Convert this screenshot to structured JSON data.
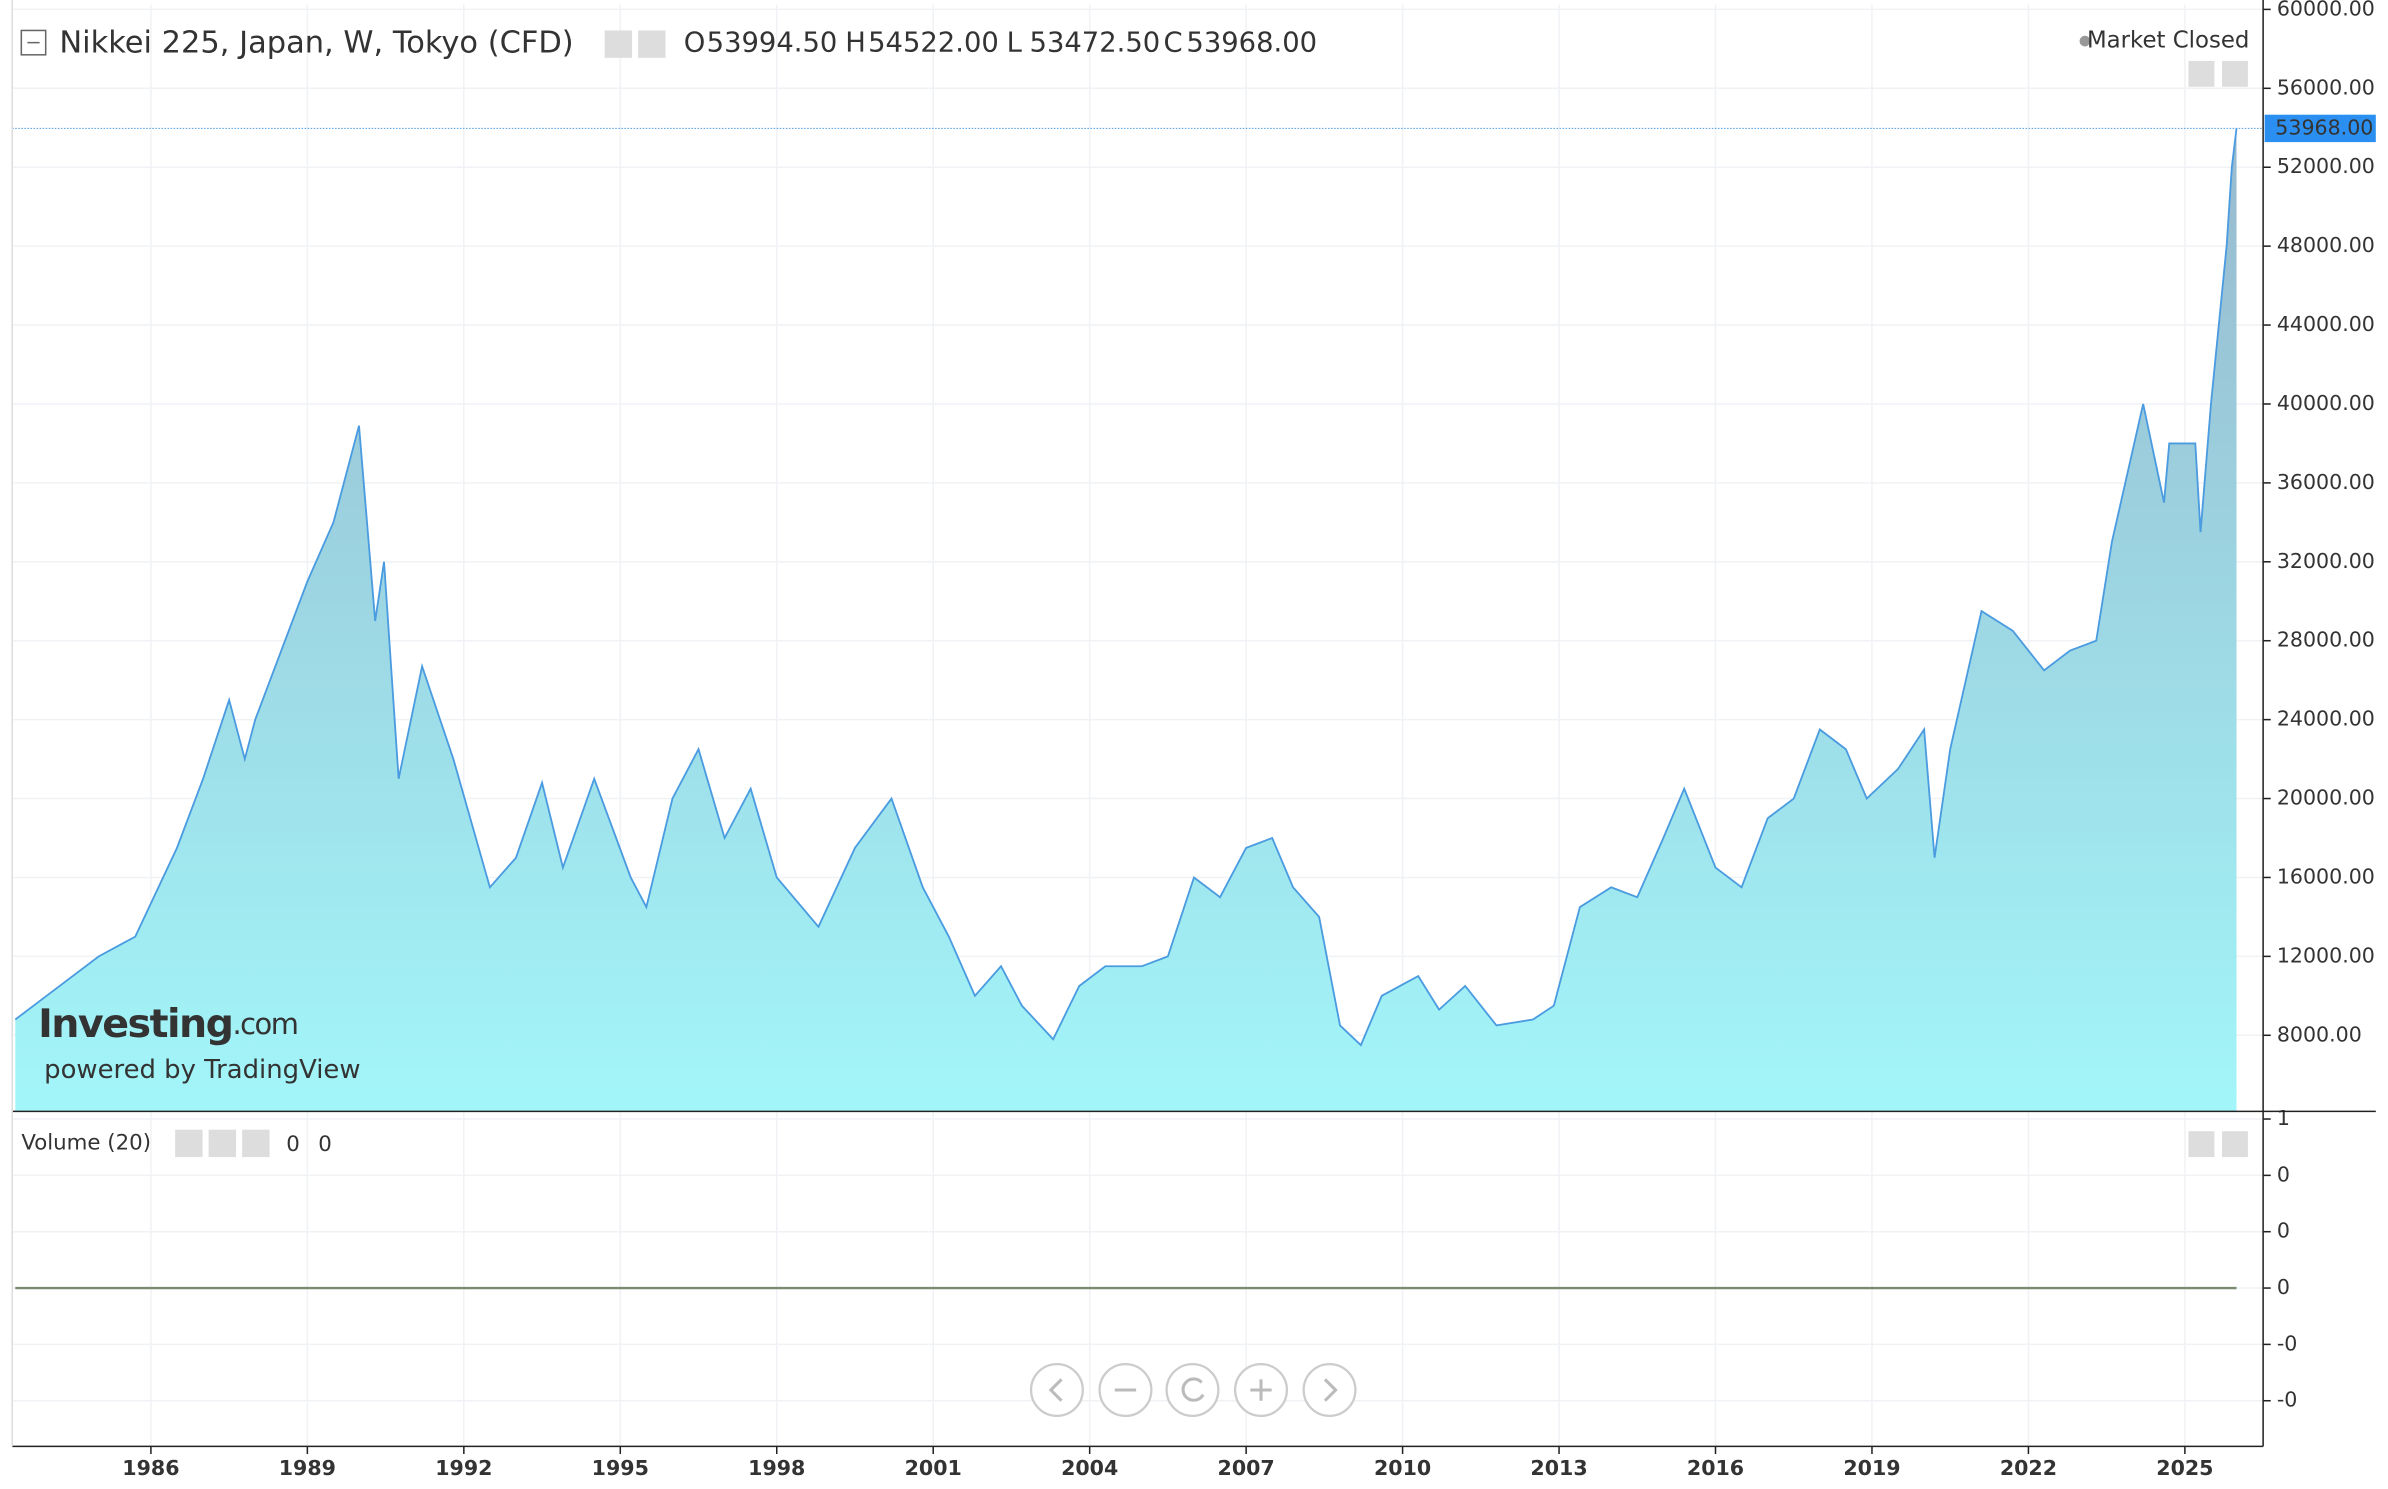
{
  "chart_data": [
    {
      "type": "area",
      "title": "Nikkei 225, Japan, W, Tokyo (CFD)",
      "ohlc": {
        "labels": [
          "O",
          "H",
          "L",
          "C"
        ],
        "values": [
          53994.5,
          54522,
          53472.5,
          53968
        ],
        "value_labels": [
          "53994.50",
          "54522.00",
          "53472.50",
          "53968.00"
        ]
      },
      "status": "Market Closed",
      "brand": [
        "Investing",
        ".com"
      ],
      "powered_by": "powered by TradingView",
      "last_value": 53968,
      "last_value_label": "53968.00",
      "color": "#4a9be0",
      "fill_top": "#98b9ce",
      "fill_bottom": "#a2f6f9",
      "grid": true,
      "x": [
        1983.4,
        1984.0,
        1985.0,
        1985.7,
        1986.5,
        1987.0,
        1987.5,
        1987.8,
        1988.0,
        1988.5,
        1989.0,
        1989.5,
        1989.99,
        1990.3,
        1990.47,
        1990.75,
        1991.2,
        1991.8,
        1992.5,
        1993.0,
        1993.5,
        1993.9,
        1994.5,
        1995.2,
        1995.5,
        1996.0,
        1996.5,
        1997.0,
        1997.5,
        1998.0,
        1998.8,
        1999.5,
        2000.2,
        2000.8,
        2001.3,
        2001.8,
        2002.3,
        2002.7,
        2003.3,
        2003.8,
        2004.3,
        2005.0,
        2005.5,
        2006.0,
        2006.5,
        2007.0,
        2007.5,
        2007.9,
        2008.4,
        2008.8,
        2009.2,
        2009.6,
        2010.3,
        2010.7,
        2011.2,
        2011.8,
        2012.5,
        2012.9,
        2013.4,
        2014.0,
        2014.5,
        2015.0,
        2015.4,
        2016.0,
        2016.5,
        2017.0,
        2017.5,
        2018.0,
        2018.5,
        2018.9,
        2019.5,
        2020.0,
        2020.2,
        2020.5,
        2021.1,
        2021.7,
        2022.3,
        2022.8,
        2023.3,
        2023.6,
        2024.2,
        2024.6,
        2024.7,
        2025.2,
        2025.3,
        2025.5,
        2025.8,
        2025.9,
        2025.99
      ],
      "values": [
        8800,
        10000,
        12000,
        13000,
        17500,
        21000,
        25000,
        22000,
        24000,
        27500,
        31000,
        34000,
        38900,
        29000,
        32000,
        21000,
        26700,
        22000,
        15500,
        17000,
        20800,
        16500,
        21000,
        16000,
        14500,
        20000,
        22500,
        18000,
        20500,
        16000,
        13500,
        17500,
        20000,
        15500,
        13000,
        10000,
        11500,
        9500,
        7800,
        10500,
        11500,
        11500,
        12000,
        16000,
        15000,
        17500,
        18000,
        15500,
        14000,
        8500,
        7500,
        10000,
        11000,
        9300,
        10500,
        8500,
        8800,
        9500,
        14500,
        15500,
        15000,
        18000,
        20500,
        16500,
        15500,
        19000,
        20000,
        23500,
        22500,
        20000,
        21500,
        23500,
        17000,
        22500,
        29500,
        28500,
        26500,
        27500,
        28000,
        33000,
        40000,
        35000,
        38000,
        38000,
        33500,
        40000,
        48000,
        52000,
        53968
      ],
      "xlim": [
        1983.34,
        2026.5
      ],
      "xticks": [
        1986,
        1989,
        1992,
        1995,
        1998,
        2001,
        2004,
        2007,
        2010,
        2013,
        2016,
        2019,
        2022,
        2025
      ],
      "ylim": [
        4141,
        60245
      ],
      "yticks": [
        {
          "value": 8000,
          "label": "8000.00"
        },
        {
          "value": 12000,
          "label": "12000.00"
        },
        {
          "value": 16000,
          "label": "16000.00"
        },
        {
          "value": 20000,
          "label": "20000.00"
        },
        {
          "value": 24000,
          "label": "24000.00"
        },
        {
          "value": 28000,
          "label": "28000.00"
        },
        {
          "value": 32000,
          "label": "32000.00"
        },
        {
          "value": 36000,
          "label": "36000.00"
        },
        {
          "value": 40000,
          "label": "40000.00"
        },
        {
          "value": 44000,
          "label": "44000.00"
        },
        {
          "value": 48000,
          "label": "48000.00"
        },
        {
          "value": 52000,
          "label": "52000.00"
        },
        {
          "value": 56000,
          "label": "56000.00"
        },
        {
          "value": 60000,
          "label": "60000.00"
        }
      ]
    },
    {
      "type": "line",
      "title": "Volume (20)",
      "legend_values": [
        0,
        0
      ],
      "legend_colors": [
        "#c0392b",
        "#000000"
      ],
      "color": "#7a8a70",
      "x": [
        1983.4,
        2025.99
      ],
      "values": [
        0,
        0
      ],
      "ylim": [
        -0.562,
        0.627
      ],
      "yticks": [
        {
          "value": 0.6,
          "label": "1"
        },
        {
          "value": 0.4,
          "label": "0"
        },
        {
          "value": 0.2,
          "label": "0"
        },
        0,
        {
          "value": -0.2,
          "label": "-0"
        },
        {
          "value": -0.4,
          "label": "-0"
        }
      ]
    }
  ]
}
